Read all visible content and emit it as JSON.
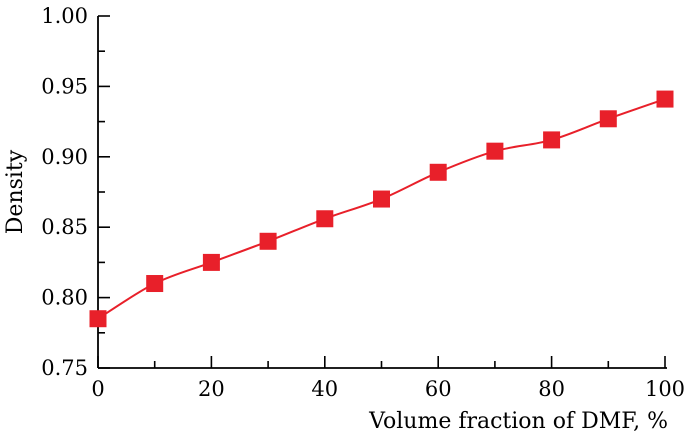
{
  "chart_data": {
    "type": "line",
    "title": "",
    "xlabel": "Volume fraction of DMF, %",
    "ylabel": "Density",
    "xlim": [
      0,
      100
    ],
    "ylim": [
      0.75,
      1.0
    ],
    "xticks": [
      0,
      20,
      40,
      60,
      80,
      100
    ],
    "xtick_labels": [
      "0",
      "20",
      "40",
      "60",
      "80",
      "100"
    ],
    "yticks": [
      0.75,
      0.8,
      0.85,
      0.9,
      0.95,
      1.0
    ],
    "ytick_labels": [
      "0.75",
      "0.80",
      "0.85",
      "0.90",
      "0.95",
      "1.00"
    ],
    "grid": false,
    "series": [
      {
        "marker": "square",
        "color": "#e8202a",
        "x": [
          0,
          10,
          20,
          30,
          40,
          50,
          60,
          70,
          80,
          90,
          100
        ],
        "y": [
          0.785,
          0.81,
          0.825,
          0.84,
          0.856,
          0.87,
          0.889,
          0.904,
          0.912,
          0.927,
          0.941
        ]
      }
    ]
  }
}
